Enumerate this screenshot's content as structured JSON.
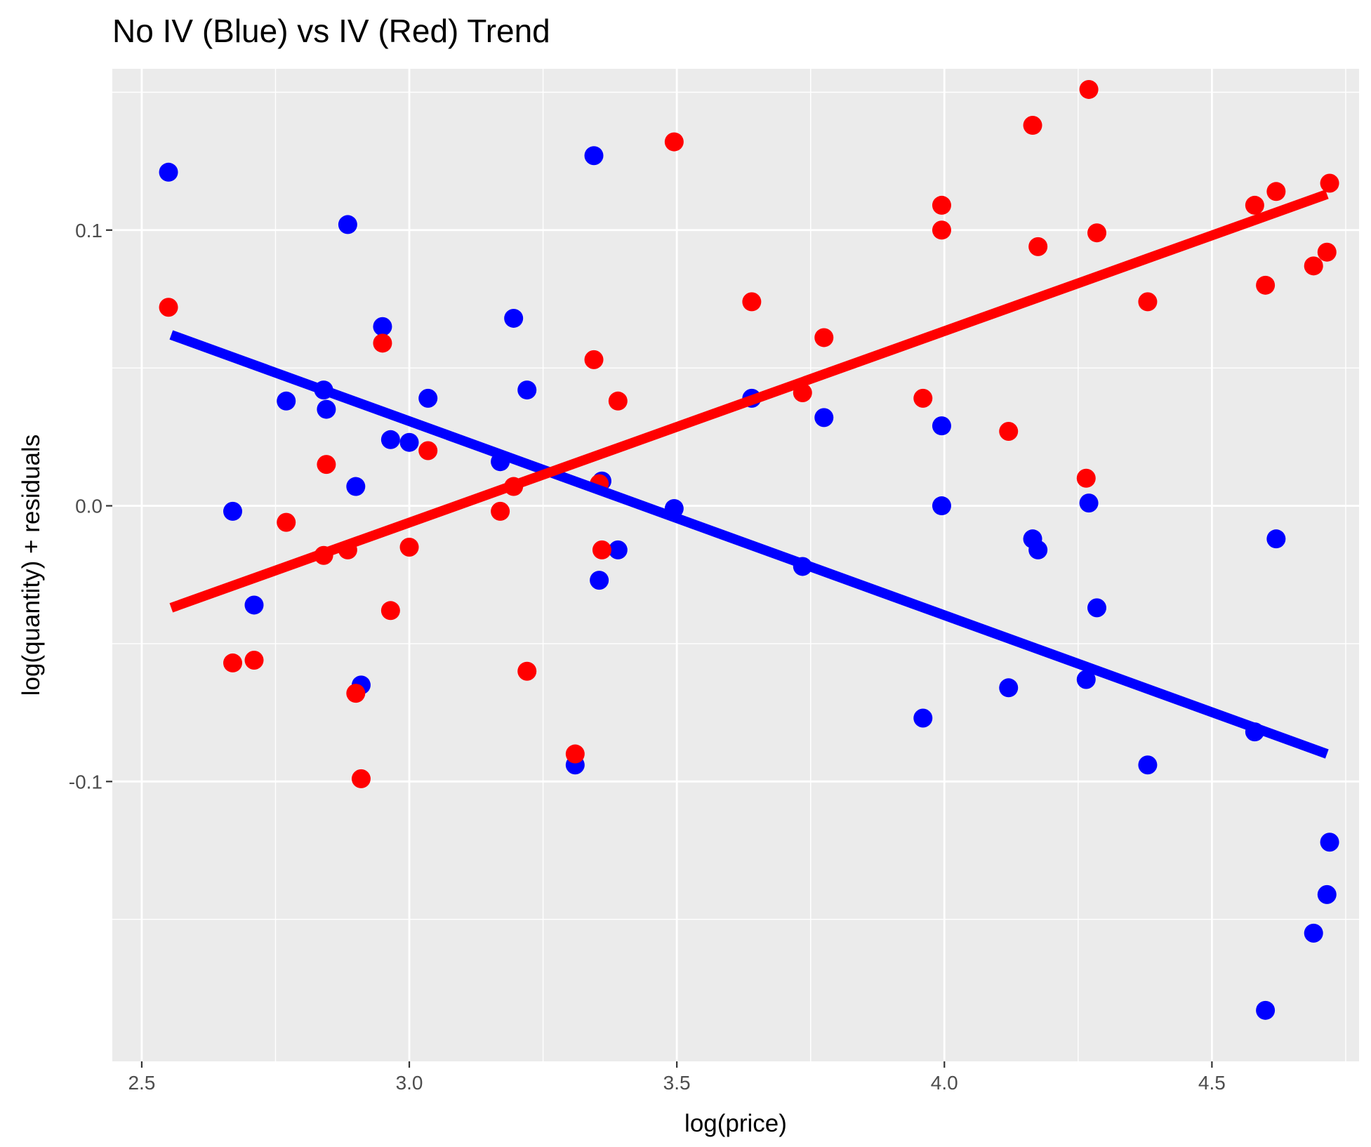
{
  "chart_data": {
    "type": "scatter",
    "title": "No IV (Blue) vs IV (Red) Trend",
    "xlabel": "log(price)",
    "ylabel": "log(quantity) + residuals",
    "xlim": [
      2.445,
      4.775
    ],
    "ylim": [
      -0.2015,
      0.1585
    ],
    "x_ticks": [
      2.5,
      3.0,
      3.5,
      4.0,
      4.5
    ],
    "x_tick_labels": [
      "2.5",
      "3.0",
      "3.5",
      "4.0",
      "4.5"
    ],
    "y_ticks": [
      -0.1,
      0.0,
      0.1
    ],
    "y_tick_labels": [
      "-0.1",
      "0.0",
      "0.1"
    ],
    "grid": true,
    "colors": {
      "panel": "#ebebeb",
      "grid": "#ffffff",
      "blue": "#0000ff",
      "red": "#ff0000"
    },
    "series": [
      {
        "color": "#0000ff",
        "points": [
          [
            2.55,
            0.121
          ],
          [
            2.67,
            -0.002
          ],
          [
            2.71,
            -0.036
          ],
          [
            2.77,
            0.038
          ],
          [
            2.84,
            0.042
          ],
          [
            2.845,
            0.035
          ],
          [
            2.885,
            0.102
          ],
          [
            2.9,
            0.007
          ],
          [
            2.91,
            -0.065
          ],
          [
            2.95,
            0.065
          ],
          [
            2.965,
            0.024
          ],
          [
            3.0,
            0.023
          ],
          [
            3.035,
            0.039
          ],
          [
            3.17,
            0.016
          ],
          [
            3.195,
            0.068
          ],
          [
            3.22,
            0.042
          ],
          [
            3.31,
            -0.094
          ],
          [
            3.345,
            0.127
          ],
          [
            3.355,
            -0.027
          ],
          [
            3.36,
            0.009
          ],
          [
            3.39,
            -0.016
          ],
          [
            3.495,
            -0.001
          ],
          [
            3.64,
            0.039
          ],
          [
            3.735,
            -0.022
          ],
          [
            3.775,
            0.032
          ],
          [
            3.96,
            -0.077
          ],
          [
            3.995,
            0.0
          ],
          [
            3.995,
            0.029
          ],
          [
            4.12,
            -0.066
          ],
          [
            4.165,
            -0.012
          ],
          [
            4.175,
            -0.016
          ],
          [
            4.265,
            -0.063
          ],
          [
            4.27,
            0.001
          ],
          [
            4.285,
            -0.037
          ],
          [
            4.38,
            -0.094
          ],
          [
            4.58,
            -0.082
          ],
          [
            4.6,
            -0.183
          ],
          [
            4.62,
            -0.012
          ],
          [
            4.69,
            -0.155
          ],
          [
            4.715,
            -0.141
          ],
          [
            4.72,
            -0.122
          ]
        ],
        "trend": [
          [
            2.555,
            0.062
          ],
          [
            4.715,
            -0.09
          ]
        ]
      },
      {
        "color": "#ff0000",
        "points": [
          [
            2.55,
            0.072
          ],
          [
            2.67,
            -0.057
          ],
          [
            2.71,
            -0.056
          ],
          [
            2.77,
            -0.006
          ],
          [
            2.84,
            -0.018
          ],
          [
            2.845,
            0.015
          ],
          [
            2.885,
            -0.016
          ],
          [
            2.9,
            -0.068
          ],
          [
            2.91,
            -0.099
          ],
          [
            2.95,
            0.059
          ],
          [
            2.965,
            -0.038
          ],
          [
            3.0,
            -0.015
          ],
          [
            3.035,
            0.02
          ],
          [
            3.17,
            -0.002
          ],
          [
            3.195,
            0.007
          ],
          [
            3.22,
            -0.06
          ],
          [
            3.31,
            -0.09
          ],
          [
            3.345,
            0.053
          ],
          [
            3.355,
            0.008
          ],
          [
            3.36,
            -0.016
          ],
          [
            3.39,
            0.038
          ],
          [
            3.495,
            0.132
          ],
          [
            3.64,
            0.074
          ],
          [
            3.735,
            0.041
          ],
          [
            3.775,
            0.061
          ],
          [
            3.96,
            0.039
          ],
          [
            3.995,
            0.109
          ],
          [
            3.995,
            0.1
          ],
          [
            4.12,
            0.027
          ],
          [
            4.165,
            0.138
          ],
          [
            4.175,
            0.094
          ],
          [
            4.265,
            0.01
          ],
          [
            4.27,
            0.151
          ],
          [
            4.285,
            0.099
          ],
          [
            4.38,
            0.074
          ],
          [
            4.58,
            0.109
          ],
          [
            4.6,
            0.08
          ],
          [
            4.62,
            0.114
          ],
          [
            4.69,
            0.087
          ],
          [
            4.715,
            0.092
          ],
          [
            4.72,
            0.117
          ]
        ],
        "trend": [
          [
            2.555,
            -0.037
          ],
          [
            4.715,
            0.113
          ]
        ]
      }
    ]
  }
}
